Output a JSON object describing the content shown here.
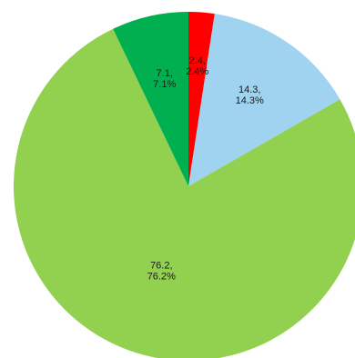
{
  "chart_data": {
    "type": "pie",
    "start_angle_deg": 0,
    "direction": "clockwise",
    "slices": [
      {
        "value": 2.4,
        "label_value": "2.4,",
        "label_pct": "2.4%",
        "color": "#ff0000"
      },
      {
        "value": 14.3,
        "label_value": "14.3,",
        "label_pct": "14.3%",
        "color": "#9fd3ef"
      },
      {
        "value": 76.2,
        "label_value": "76.2,",
        "label_pct": "76.2%",
        "color": "#92d050"
      },
      {
        "value": 7.1,
        "label_value": "7.1,",
        "label_pct": "7.1%",
        "color": "#00b050"
      }
    ],
    "legend": "none"
  }
}
